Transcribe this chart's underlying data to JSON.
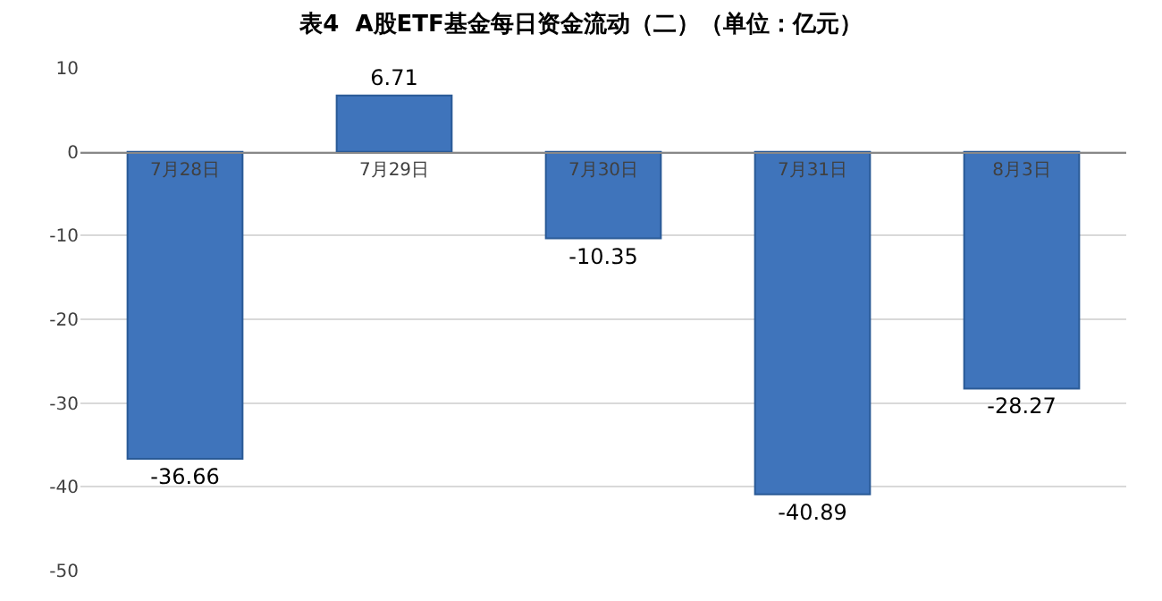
{
  "chart_data": {
    "type": "bar",
    "title": "表4  A股ETF基金每日资金流动（二）（单位：亿元）",
    "categories": [
      "7月28日",
      "7月29日",
      "7月30日",
      "7月31日",
      "8月3日"
    ],
    "values": [
      -36.66,
      6.71,
      -10.35,
      -40.89,
      -28.27
    ],
    "color": "#3f74bb",
    "ylim": [
      -50,
      10
    ],
    "yticks": [
      -50,
      -40,
      -30,
      -20,
      -10,
      0,
      10
    ],
    "grid": "y",
    "data_labels": true
  }
}
